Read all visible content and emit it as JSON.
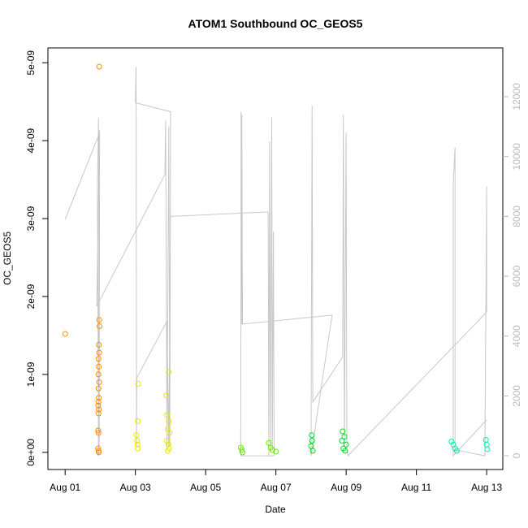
{
  "chart_data": {
    "type": "scatter",
    "title": "ATOM1 Southbound OC_GEOS5",
    "xlabel": "Date",
    "ylabel": "OC_GEOS5",
    "xlim": [
      0.51,
      13.46
    ],
    "xticks": [
      {
        "value": 1,
        "label": "Aug 01"
      },
      {
        "value": 3,
        "label": "Aug 03"
      },
      {
        "value": 5,
        "label": "Aug 05"
      },
      {
        "value": 7,
        "label": "Aug 07"
      },
      {
        "value": 9,
        "label": "Aug 09"
      },
      {
        "value": 11,
        "label": "Aug 11"
      },
      {
        "value": 13,
        "label": "Aug 13"
      }
    ],
    "ylim": [
      -2.2e-10,
      5.19e-09
    ],
    "yticks": [
      {
        "value": 0,
        "label": "0e+00"
      },
      {
        "value": 1e-09,
        "label": "1e-09"
      },
      {
        "value": 2e-09,
        "label": "2e-09"
      },
      {
        "value": 3e-09,
        "label": "3e-09"
      },
      {
        "value": 4e-09,
        "label": "4e-09"
      },
      {
        "value": 5e-09,
        "label": "5e-09"
      }
    ],
    "y2lim": [
      -460,
      13630
    ],
    "y2ticks": [
      0,
      2000,
      4000,
      6000,
      8000,
      10000,
      12000
    ],
    "series": [
      {
        "type": "scatter",
        "color": "#ff8c00",
        "x": [
          1.0,
          1.97,
          1.97,
          1.98,
          1.96,
          1.97,
          1.95,
          1.96,
          1.95,
          1.97,
          1.95,
          1.96,
          1.95,
          1.94,
          1.96,
          1.95,
          1.94,
          1.95,
          1.94,
          1.95,
          1.96
        ],
        "values": [
          1.52e-09,
          4.95e-09,
          1.7e-09,
          1.62e-09,
          1.38e-09,
          1.28e-09,
          1.2e-09,
          1.1e-09,
          1e-09,
          9e-10,
          8.2e-10,
          7e-10,
          6.5e-10,
          6e-10,
          5.5e-10,
          5e-10,
          2.8e-10,
          2.5e-10,
          5e-11,
          2e-11,
          0.0
        ]
      },
      {
        "type": "scatter",
        "color": "#e8e800",
        "x": [
          3.08,
          3.07,
          3.03,
          3.05,
          3.06,
          3.07,
          3.95,
          3.88,
          3.9,
          3.95,
          3.92,
          3.97,
          3.9,
          3.94,
          3.96,
          3.92
        ],
        "values": [
          8.8e-10,
          4e-10,
          2.2e-10,
          1.5e-10,
          1e-10,
          5e-11,
          1.03e-09,
          7.3e-10,
          4.8e-10,
          4e-10,
          3e-10,
          2.5e-10,
          1.5e-10,
          1e-10,
          5e-11,
          2e-11
        ]
      },
      {
        "type": "scatter",
        "color": "#66ee00",
        "x": [
          6.0,
          6.03,
          6.05,
          6.8,
          6.85,
          6.9,
          7.0
        ],
        "values": [
          6e-11,
          3e-11,
          0.0,
          1.2e-10,
          6e-11,
          3e-11,
          1e-11
        ]
      },
      {
        "type": "scatter",
        "color": "#00dd22",
        "x": [
          8.02,
          8.03,
          8.0,
          8.05,
          8.9,
          8.95,
          8.88,
          9.0,
          8.92,
          8.97
        ],
        "values": [
          2.2e-10,
          1.5e-10,
          8e-11,
          2e-11,
          2.7e-10,
          2e-10,
          1.5e-10,
          1e-10,
          5e-11,
          2e-11
        ]
      },
      {
        "type": "scatter",
        "color": "#00eeaa",
        "x": [
          12.0,
          12.05,
          12.1,
          12.15,
          12.98,
          13.0,
          13.02
        ],
        "values": [
          1.4e-10,
          1e-10,
          5e-11,
          2e-11,
          1.6e-10,
          1e-10,
          4e-11
        ]
      },
      {
        "type": "line",
        "axis": "y2",
        "color": "#c8c8c8",
        "x": [
          1.0,
          1.97,
          1.95,
          1.92,
          1.95,
          1.97,
          1.98,
          1.9,
          3.84,
          3.86,
          3.9,
          3.95,
          3.98,
          4.0,
          4.0,
          3.0,
          3.02,
          3.03,
          3.04,
          3.9,
          3.95,
          4.0,
          6.78,
          6.8,
          6.82,
          6.85,
          6.88,
          6.9,
          6.93,
          6.95,
          6.0,
          6.01,
          6.03,
          6.03,
          6.05,
          8.6,
          8.0,
          8.03,
          8.05,
          8.9,
          8.92,
          8.95,
          9.0,
          9.02,
          9.05,
          13.0,
          13.0,
          12.95,
          12.1,
          12.1,
          12.05,
          12.05,
          13.0
        ],
        "values": [
          7900,
          10750,
          0,
          9000,
          11300,
          300,
          10900,
          5000,
          9400,
          11200,
          200,
          11000,
          300,
          10600,
          11500,
          11800,
          13000,
          300,
          2600,
          4500,
          300,
          8000,
          8150,
          0,
          10500,
          200,
          11300,
          300,
          7500,
          0,
          0,
          11500,
          4400,
          11400,
          4400,
          4700,
          0,
          11700,
          1800,
          3300,
          11400,
          300,
          10800,
          200,
          0,
          4800,
          9000,
          0,
          200,
          10300,
          9100,
          0,
          1200
        ]
      }
    ]
  }
}
